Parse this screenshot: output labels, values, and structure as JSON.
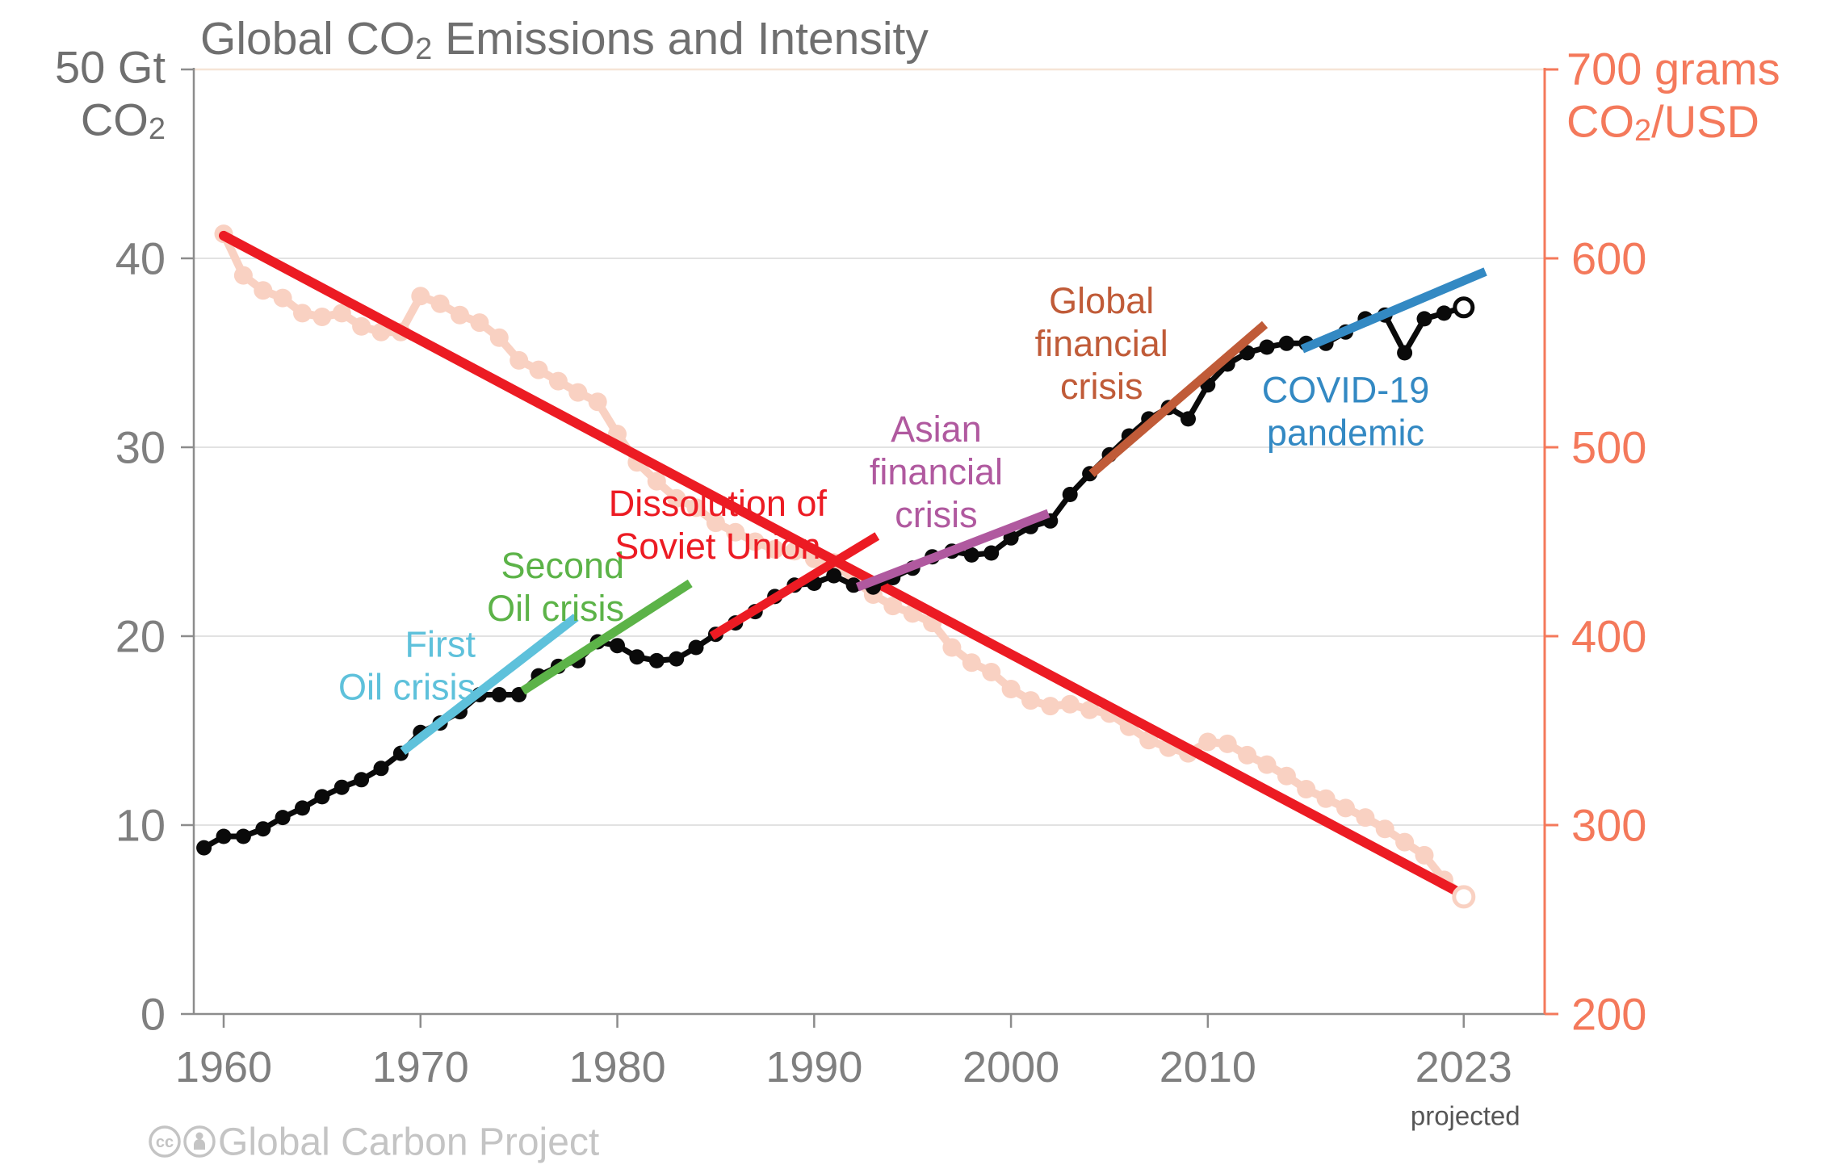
{
  "title": {
    "prefix": "Global CO",
    "subscript": "2",
    "suffix": " Emissions and Intensity"
  },
  "footer": {
    "icons": [
      "cc-icon",
      "attribution-person-icon"
    ],
    "credit": "Global Carbon Project"
  },
  "left_axis": {
    "top_label_line1": "50 Gt",
    "top_label_line2_prefix": "CO",
    "top_label_line2_sub": "2",
    "tick_labels": [
      {
        "value": 40,
        "label": "40"
      },
      {
        "value": 30,
        "label": "30"
      },
      {
        "value": 20,
        "label": "20"
      },
      {
        "value": 10,
        "label": "10"
      },
      {
        "value": 0,
        "label": "0"
      }
    ],
    "tick_values": [
      0,
      10,
      20,
      30,
      40,
      50
    ],
    "range": [
      0,
      50
    ]
  },
  "right_axis": {
    "top_label_line1": "700 grams",
    "top_label_line2_prefix": "CO",
    "top_label_line2_sub": "2",
    "top_label_line2_suffix": "/USD",
    "tick_labels": [
      {
        "value": 600,
        "label": "600"
      },
      {
        "value": 500,
        "label": "500"
      },
      {
        "value": 400,
        "label": "400"
      },
      {
        "value": 300,
        "label": "300"
      },
      {
        "value": 200,
        "label": "200"
      }
    ],
    "tick_values": [
      200,
      300,
      400,
      500,
      600,
      700
    ],
    "range": [
      200,
      700
    ]
  },
  "x_axis": {
    "ticks": [
      {
        "year": 1960,
        "label": "1960"
      },
      {
        "year": 1970,
        "label": "1970"
      },
      {
        "year": 1980,
        "label": "1980"
      },
      {
        "year": 1990,
        "label": "1990"
      },
      {
        "year": 2000,
        "label": "2000"
      },
      {
        "year": 2010,
        "label": "2010"
      },
      {
        "year": 2023,
        "label": "2023",
        "note": "projected"
      }
    ]
  },
  "colors": {
    "black_series": "#0a0a0a",
    "pink_series": "#f9d1c2",
    "red": "#ec1b23",
    "cyan": "#5ec1db",
    "green": "#5cb348",
    "purple": "#b0599f",
    "brown": "#c05b38",
    "blue": "#3389c3",
    "orange_axis": "#f4795b",
    "gray_axis": "#8c8c8c",
    "tick_text": "#7f7f7f",
    "title_text": "#6f6f6f",
    "grid": "#e2e2e2",
    "top_grid": "#f6e4d6",
    "footer_text": "#c4c4c4",
    "projected_text": "#565656",
    "open_marker_fill": "#ffffff"
  },
  "chart_data": {
    "type": "line",
    "title": "Global CO2 Emissions and Intensity",
    "x_range_years": [
      1958.5,
      2026
    ],
    "left_ylim": [
      0,
      50
    ],
    "right_ylim": [
      200,
      700
    ],
    "left_unit": "Gt CO2",
    "right_unit": "grams CO2/USD",
    "grid": "horizontal-only",
    "series": [
      {
        "name": "global-co2-emissions",
        "axis": "left",
        "color_key": "black_series",
        "start_year": 1959,
        "last_point_open": true,
        "values": [
          8.8,
          9.4,
          9.4,
          9.8,
          10.4,
          10.9,
          11.5,
          12.0,
          12.4,
          13.0,
          13.8,
          14.9,
          15.4,
          16.0,
          16.9,
          16.9,
          16.9,
          17.9,
          18.4,
          18.7,
          19.7,
          19.5,
          18.9,
          18.7,
          18.8,
          19.4,
          20.1,
          20.7,
          21.3,
          22.1,
          22.7,
          22.8,
          23.2,
          22.7,
          22.6,
          23.1,
          23.6,
          24.2,
          24.5,
          24.3,
          24.4,
          25.2,
          25.8,
          26.1,
          27.5,
          28.6,
          29.6,
          30.6,
          31.5,
          32.1,
          31.5,
          33.3,
          34.4,
          35.0,
          35.3,
          35.5,
          35.5,
          35.5,
          36.1,
          36.8,
          37.0,
          35.0,
          36.8,
          37.1,
          37.4
        ]
      },
      {
        "name": "carbon-intensity",
        "axis": "right",
        "color_key": "pink_series",
        "start_year": 1960,
        "last_point_open": true,
        "values": [
          613,
          591,
          583,
          579,
          571,
          569,
          571,
          564,
          561,
          561,
          580,
          576,
          570,
          566,
          558,
          546,
          541,
          535,
          529,
          524,
          507,
          492,
          482,
          473,
          468,
          460,
          455,
          450,
          446,
          445,
          441,
          439,
          430,
          422,
          416,
          412,
          407,
          394,
          386,
          381,
          372,
          366,
          363,
          364,
          361,
          359,
          352,
          345,
          341,
          338,
          344,
          343,
          337,
          332,
          326,
          319,
          314,
          309,
          304,
          298,
          291,
          284,
          271,
          262
        ]
      }
    ],
    "intensity_trend_line": {
      "name": "intensity-linear-trend",
      "axis": "right",
      "color_key": "red",
      "from": [
        1960,
        612
      ],
      "to": [
        2023,
        263
      ]
    },
    "trend_segments": [
      {
        "name": "first-oil-crisis-trend",
        "axis": "left",
        "color_key": "cyan",
        "from": [
          1969.1,
          13.9
        ],
        "to": [
          1977.9,
          21.0
        ]
      },
      {
        "name": "second-oil-crisis-trend",
        "axis": "left",
        "color_key": "green",
        "from": [
          1975.2,
          17.1
        ],
        "to": [
          1983.7,
          22.8
        ]
      },
      {
        "name": "soviet-dissolution-trend",
        "axis": "left",
        "color_key": "red",
        "from": [
          1984.8,
          20.0
        ],
        "to": [
          1993.2,
          25.3
        ]
      },
      {
        "name": "asian-financial-crisis-trend",
        "axis": "left",
        "color_key": "purple",
        "from": [
          1992.2,
          22.6
        ],
        "to": [
          2001.9,
          26.5
        ]
      },
      {
        "name": "global-financial-crisis-trend",
        "axis": "left",
        "color_key": "brown",
        "from": [
          2004.1,
          28.6
        ],
        "to": [
          2012.9,
          36.5
        ]
      },
      {
        "name": "covid-pandemic-trend",
        "axis": "left",
        "color_key": "blue",
        "from": [
          2014.8,
          35.2
        ],
        "to": [
          2024.1,
          39.3
        ]
      }
    ],
    "annotations": [
      {
        "name": "first-oil-crisis-label",
        "lines": [
          "First",
          "Oil crisis"
        ],
        "color_key": "cyan",
        "year": 1972.8,
        "gt": 18.45,
        "anchor": "end"
      },
      {
        "name": "second-oil-crisis-label",
        "lines": [
          "Second",
          "Oil crisis"
        ],
        "color_key": "green",
        "year": 1980.35,
        "gt": 22.6,
        "anchor": "end"
      },
      {
        "name": "soviet-dissolution-label",
        "lines": [
          "Dissolution of",
          "Soviet Union"
        ],
        "color_key": "red",
        "year": 1985.1,
        "gt": 25.9,
        "anchor": "middle"
      },
      {
        "name": "asian-financial-crisis-label",
        "lines": [
          "Asian",
          "financial",
          "crisis"
        ],
        "color_key": "purple",
        "year": 1996.2,
        "gt": 28.7,
        "anchor": "middle"
      },
      {
        "name": "global-financial-crisis-label",
        "lines": [
          "Global",
          "financial",
          "crisis"
        ],
        "color_key": "brown",
        "year": 2004.6,
        "gt": 35.5,
        "anchor": "middle"
      },
      {
        "name": "covid-pandemic-label",
        "lines": [
          "COVID-19",
          "pandemic"
        ],
        "color_key": "blue",
        "year": 2017.0,
        "gt": 31.9,
        "anchor": "middle"
      }
    ]
  }
}
